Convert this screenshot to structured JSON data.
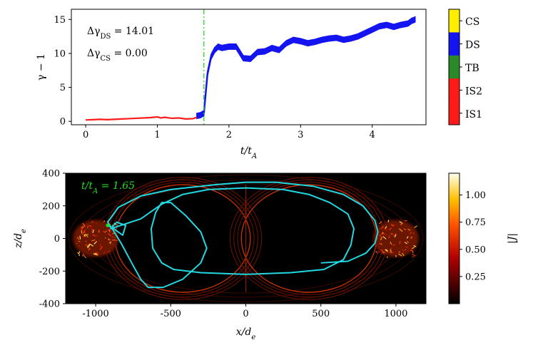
{
  "chart_data": [
    {
      "type": "line",
      "panel": "top",
      "xlabel": "t/t_A",
      "ylabel": "γ − 1",
      "xlim": [
        -0.2,
        4.75
      ],
      "ylim": [
        -0.5,
        16.5
      ],
      "xticks": [
        "0",
        "1",
        "2",
        "3",
        "4"
      ],
      "yticks": [
        "0",
        "5",
        "10",
        "15"
      ],
      "annotations": [
        "Δγ_DS = 14.01",
        "Δγ_CS = 0.00"
      ],
      "vline_t": 1.65,
      "series": [
        {
          "name": "IS1/IS2 (red)",
          "color": "#ff1a1a",
          "x": [
            0.0,
            0.1,
            0.2,
            0.3,
            0.4,
            0.5,
            0.6,
            0.7,
            0.8,
            0.9,
            1.0,
            1.05,
            1.1,
            1.2,
            1.3,
            1.4,
            1.5,
            1.55
          ],
          "y": [
            0.2,
            0.25,
            0.3,
            0.25,
            0.3,
            0.35,
            0.4,
            0.45,
            0.5,
            0.55,
            0.65,
            0.5,
            0.6,
            0.45,
            0.5,
            0.35,
            0.4,
            0.6
          ]
        },
        {
          "name": "DS (blue)",
          "color": "#1414f0",
          "x": [
            1.55,
            1.6,
            1.65,
            1.7,
            1.75,
            1.8,
            1.85,
            1.9,
            2.0,
            2.1,
            2.2,
            2.3,
            2.4,
            2.5,
            2.6,
            2.7,
            2.8,
            2.9,
            3.0,
            3.1,
            3.2,
            3.3,
            3.4,
            3.5,
            3.6,
            3.7,
            3.8,
            3.9,
            4.0,
            4.1,
            4.2,
            4.3,
            4.4,
            4.5,
            4.55,
            4.6
          ],
          "y": [
            0.8,
            0.9,
            1.2,
            7.0,
            9.5,
            10.5,
            11.0,
            10.8,
            11.0,
            11.0,
            9.3,
            9.2,
            10.2,
            10.3,
            10.8,
            10.5,
            11.5,
            12.0,
            11.8,
            11.5,
            11.7,
            12.0,
            12.2,
            12.3,
            12.0,
            12.2,
            12.5,
            13.0,
            13.5,
            14.0,
            14.2,
            13.9,
            14.2,
            14.4,
            14.8,
            15.0
          ],
          "band": 0.4
        }
      ]
    },
    {
      "type": "heatmap",
      "panel": "bottom",
      "xlabel": "x/d_e",
      "ylabel": "z/d_e",
      "xlim": [
        -1200,
        1200
      ],
      "ylim": [
        -400,
        400
      ],
      "xticks": [
        "-1000",
        "-500",
        "0",
        "500",
        "1000"
      ],
      "yticks": [
        "400",
        "200",
        "0",
        "-200",
        "-400"
      ],
      "colorbar": {
        "label": "|J|",
        "ticks": [
          "1.00",
          "0.75",
          "0.50",
          "0.25"
        ],
        "range": [
          0.0,
          1.2
        ]
      },
      "time_label": "t/t_A = 1.65",
      "trajectory_color": "#22d8e0",
      "trajectory": [
        [
          -920,
          80
        ],
        [
          -880,
          60
        ],
        [
          -820,
          20
        ],
        [
          -800,
          80
        ],
        [
          -860,
          100
        ],
        [
          -900,
          60
        ],
        [
          -700,
          120
        ],
        [
          -560,
          210
        ],
        [
          -420,
          270
        ],
        [
          -250,
          300
        ],
        [
          0,
          310
        ],
        [
          250,
          300
        ],
        [
          420,
          270
        ],
        [
          560,
          220
        ],
        [
          680,
          150
        ],
        [
          720,
          60
        ],
        [
          700,
          -40
        ],
        [
          650,
          -130
        ],
        [
          520,
          -190
        ],
        [
          300,
          -210
        ],
        [
          0,
          -220
        ],
        [
          -300,
          -210
        ],
        [
          -480,
          -190
        ],
        [
          -560,
          -150
        ],
        [
          -620,
          -60
        ],
        [
          -630,
          60
        ],
        [
          -600,
          160
        ],
        [
          -560,
          220
        ],
        [
          -500,
          220
        ],
        [
          -400,
          140
        ],
        [
          -300,
          40
        ],
        [
          -260,
          -60
        ],
        [
          -300,
          -150
        ],
        [
          -420,
          -250
        ],
        [
          -550,
          -300
        ],
        [
          -650,
          -300
        ],
        [
          -700,
          -250
        ],
        [
          -760,
          -150
        ],
        [
          -830,
          -30
        ],
        [
          -890,
          60
        ],
        [
          -920,
          100
        ],
        [
          -850,
          190
        ],
        [
          -700,
          260
        ],
        [
          -500,
          300
        ],
        [
          -200,
          330
        ],
        [
          0,
          345
        ],
        [
          200,
          345
        ],
        [
          450,
          320
        ],
        [
          650,
          270
        ],
        [
          780,
          200
        ],
        [
          860,
          110
        ],
        [
          880,
          40
        ],
        [
          860,
          -30
        ],
        [
          800,
          -90
        ],
        [
          680,
          -140
        ],
        [
          500,
          -150
        ]
      ]
    }
  ],
  "colorbar_top": {
    "labels": [
      "CS",
      "DS",
      "TB",
      "IS2",
      "IS1"
    ],
    "colors": [
      "#ffee00",
      "#1414f0",
      "#2a8a2a",
      "#ff1a1a",
      "#ff1a1a"
    ]
  }
}
